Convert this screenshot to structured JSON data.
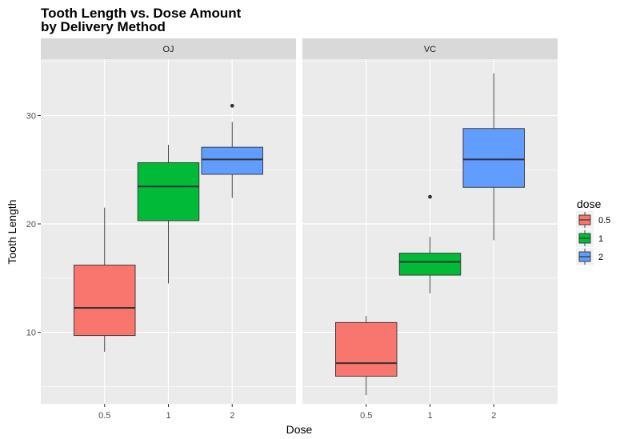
{
  "chart_data": {
    "type": "boxplot",
    "title_lines": [
      "Tooth Length vs. Dose Amount",
      "by Delivery Method"
    ],
    "xlabel": "Dose",
    "ylabel": "Tooth Length",
    "ylim": [
      3.4,
      35.2
    ],
    "yticks": [
      10,
      20,
      30
    ],
    "grid": true,
    "categories": [
      "0.5",
      "1",
      "2"
    ],
    "legend": {
      "title": "dose",
      "position": "right",
      "entries": [
        {
          "label": "0.5",
          "color": "#F8766D"
        },
        {
          "label": "1",
          "color": "#00BA38"
        },
        {
          "label": "2",
          "color": "#619CFF"
        }
      ]
    },
    "facets": [
      {
        "label": "OJ",
        "boxes": [
          {
            "dose": "0.5",
            "color": "#F8766D",
            "whisker_low": 8.2,
            "q1": 9.7,
            "median": 12.25,
            "q3": 16.2,
            "whisker_high": 21.5,
            "outliers": []
          },
          {
            "dose": "1",
            "color": "#00BA38",
            "whisker_low": 14.5,
            "q1": 20.3,
            "median": 23.45,
            "q3": 25.65,
            "whisker_high": 27.3,
            "outliers": []
          },
          {
            "dose": "2",
            "color": "#619CFF",
            "whisker_low": 22.4,
            "q1": 24.575,
            "median": 25.95,
            "q3": 27.075,
            "whisker_high": 29.4,
            "outliers": [
              30.9
            ]
          }
        ]
      },
      {
        "label": "VC",
        "boxes": [
          {
            "dose": "0.5",
            "color": "#F8766D",
            "whisker_low": 4.2,
            "q1": 5.95,
            "median": 7.15,
            "q3": 10.9,
            "whisker_high": 11.5,
            "outliers": []
          },
          {
            "dose": "1",
            "color": "#00BA38",
            "whisker_low": 13.6,
            "q1": 15.275,
            "median": 16.5,
            "q3": 17.3,
            "whisker_high": 18.8,
            "outliers": [
              22.5
            ]
          },
          {
            "dose": "2",
            "color": "#619CFF",
            "whisker_low": 18.5,
            "q1": 23.375,
            "median": 25.95,
            "q3": 28.8,
            "whisker_high": 33.9,
            "outliers": []
          }
        ]
      }
    ]
  }
}
